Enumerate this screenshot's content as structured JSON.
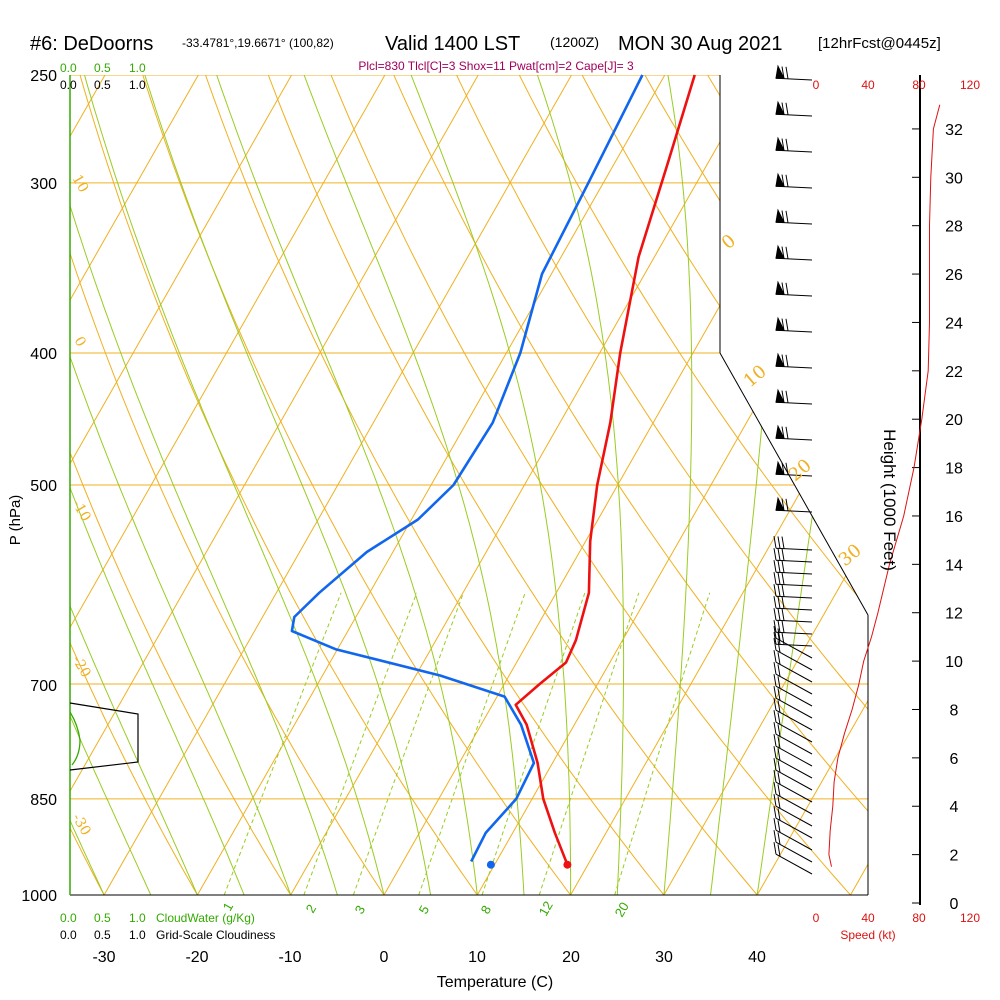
{
  "header": {
    "station": "#6: DeDoorns",
    "coords": "-33.4781°,19.6671° (100,82)",
    "valid_main": "Valid 1400 LST",
    "valid_utc": "(1200Z)",
    "date": "MON 30 Aug 2021",
    "forecast": "[12hrFcst@0445z]",
    "indices": "Plcl=830 Tlcl[C]=3 Shox=11 Pwat[cm]=2 Cape[J]= 3"
  },
  "colors": {
    "isotherm": "#f0b020",
    "dry_adiabat": "#f0b020",
    "moist_adiabat": "#99cc22",
    "mixing_ratio": "#99cc22",
    "temperature": "#ee1111",
    "dewpoint": "#1166ee",
    "cloud": "#33aa00",
    "speed": "#dd1111"
  },
  "chart_data": {
    "type": "skewt",
    "title": "#6: DeDoorns Valid 1400 LST (1200Z) MON 30 Aug 2021",
    "xlabel": "Temperature (C)",
    "ylabel": "P (hPa)",
    "right_axis_label": "Height (1000 Feet)",
    "x_ticks": [
      -30,
      -20,
      -10,
      0,
      10,
      20,
      30,
      40
    ],
    "y_ticks": [
      250,
      300,
      400,
      500,
      700,
      850,
      1000
    ],
    "xlim": [
      -34,
      52
    ],
    "ylim": [
      250,
      1000
    ],
    "isotherm_labels": [
      "10",
      "0",
      "-10",
      "-20",
      "-30",
      "0",
      "10",
      "20",
      "30"
    ],
    "mixing_ratio_labels": [
      "1",
      "2",
      "3",
      "5",
      "8",
      "12",
      "20"
    ],
    "height_ticks": [
      "0",
      "2",
      "4",
      "6",
      "8",
      "10",
      "12",
      "14",
      "16",
      "18",
      "20",
      "22",
      "24",
      "26",
      "28",
      "30",
      "32"
    ],
    "speed_ticks": [
      "0",
      "40",
      "80",
      "120"
    ],
    "speed_label": "Speed (kt)",
    "cloudwater_ticks": [
      "0.0",
      "0.5",
      "1.0"
    ],
    "cloudwater_label": "CloudWater (g/Kg)",
    "cloudiness_ticks": [
      "0.0",
      "0.5",
      "1.0"
    ],
    "cloudiness_label": "Grid-Scale Cloudiness",
    "temperature": [
      {
        "p": 250,
        "t": -16.8
      },
      {
        "p": 290,
        "t": -14.3
      },
      {
        "p": 340,
        "t": -11.7
      },
      {
        "p": 400,
        "t": -7.8
      },
      {
        "p": 450,
        "t": -4.6
      },
      {
        "p": 500,
        "t": -2.2
      },
      {
        "p": 550,
        "t": 0.5
      },
      {
        "p": 600,
        "t": 3.5
      },
      {
        "p": 650,
        "t": 5.0
      },
      {
        "p": 675,
        "t": 5.3
      },
      {
        "p": 700,
        "t": 3.8
      },
      {
        "p": 725,
        "t": 2.5
      },
      {
        "p": 750,
        "t": 4.9
      },
      {
        "p": 800,
        "t": 8.4
      },
      {
        "p": 850,
        "t": 11.2
      },
      {
        "p": 900,
        "t": 14.5
      },
      {
        "p": 950,
        "t": 17.8
      }
    ],
    "dewpoint": [
      {
        "p": 250,
        "t": -22.4
      },
      {
        "p": 300,
        "t": -21.6
      },
      {
        "p": 350,
        "t": -21.0
      },
      {
        "p": 400,
        "t": -18.5
      },
      {
        "p": 450,
        "t": -17.2
      },
      {
        "p": 500,
        "t": -17.6
      },
      {
        "p": 530,
        "t": -19.3
      },
      {
        "p": 560,
        "t": -22.8
      },
      {
        "p": 600,
        "t": -25.4
      },
      {
        "p": 625,
        "t": -26.6
      },
      {
        "p": 640,
        "t": -26.0
      },
      {
        "p": 660,
        "t": -20.2
      },
      {
        "p": 690,
        "t": -7.4
      },
      {
        "p": 715,
        "t": 0.8
      },
      {
        "p": 750,
        "t": 4.3
      },
      {
        "p": 800,
        "t": 8.0
      },
      {
        "p": 850,
        "t": 8.3
      },
      {
        "p": 900,
        "t": 7.1
      },
      {
        "p": 945,
        "t": 7.3
      }
    ],
    "surface_temperature": 17.8,
    "surface_dewpoint": 9.6,
    "surface_pressure": 950,
    "height_profile_kft": [
      1.2,
      3.6,
      7.5,
      15.0,
      22.8
    ],
    "wind_speed_kt": [
      {
        "h": 1.5,
        "s": 12
      },
      {
        "h": 2.0,
        "s": 10
      },
      {
        "h": 3.0,
        "s": 11
      },
      {
        "h": 4.0,
        "s": 13
      },
      {
        "h": 5.0,
        "s": 14
      },
      {
        "h": 6.0,
        "s": 17
      },
      {
        "h": 7.0,
        "s": 22
      },
      {
        "h": 8.0,
        "s": 28
      },
      {
        "h": 9.0,
        "s": 33
      },
      {
        "h": 10.0,
        "s": 37
      },
      {
        "h": 11.0,
        "s": 43
      },
      {
        "h": 12.0,
        "s": 48
      },
      {
        "h": 14.0,
        "s": 57
      },
      {
        "h": 16.0,
        "s": 68
      },
      {
        "h": 18.0,
        "s": 76
      },
      {
        "h": 20.0,
        "s": 82
      },
      {
        "h": 22.0,
        "s": 87
      },
      {
        "h": 24.0,
        "s": 88
      },
      {
        "h": 26.0,
        "s": 88
      },
      {
        "h": 28.0,
        "s": 88
      },
      {
        "h": 30.0,
        "s": 89
      },
      {
        "h": 32.0,
        "s": 91
      },
      {
        "h": 33.0,
        "s": 96
      }
    ]
  }
}
